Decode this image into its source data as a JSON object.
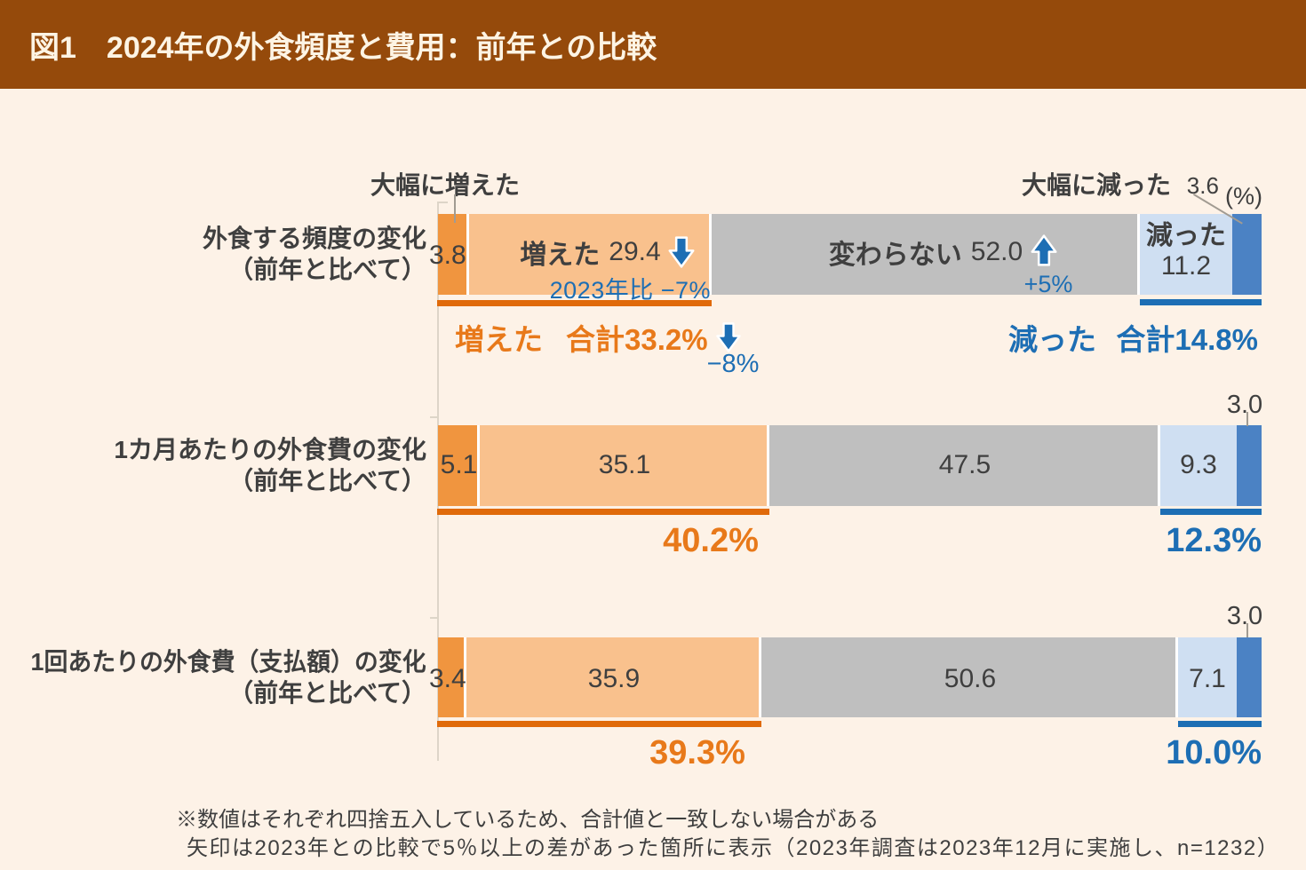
{
  "header": {
    "title": "図1　2024年の外食頻度と費用：前年との比較"
  },
  "chart_data": {
    "type": "bar",
    "orientation": "horizontal",
    "stacked": true,
    "unit": "(%)",
    "xlim": [
      0,
      100
    ],
    "series": [
      "大幅に増えた",
      "増えた",
      "変わらない",
      "減った",
      "大幅に減った"
    ],
    "colors": [
      "#f0953f",
      "#f9c18d",
      "#bfbfbf",
      "#cfdff2",
      "#4b82c4"
    ],
    "categories": [
      {
        "line1": "外食する頻度の変化",
        "line2": "（前年と比べて）"
      },
      {
        "line1": "1カ月あたりの外食費の変化",
        "line2": "（前年と比べて）"
      },
      {
        "line1": "1回あたりの外食費（支払額）の変化",
        "line2": "（前年と比べて）"
      }
    ],
    "rows": [
      {
        "values": [
          "3.8",
          "29.4",
          "52.0",
          "11.2",
          "3.6"
        ]
      },
      {
        "values": [
          "5.1",
          "35.1",
          "47.5",
          "9.3",
          "3.0"
        ]
      },
      {
        "values": [
          "3.4",
          "35.9",
          "50.6",
          "7.1",
          "3.0"
        ]
      }
    ]
  },
  "annotations": {
    "top_left": "大幅に増えた",
    "top_right_label": "大幅に減った",
    "top_right_value": "3.6",
    "unit": "(%)",
    "seg1_label": "増えた",
    "seg1_value": "29.4",
    "seg1_change": "2023年比 −7%",
    "seg2_label": "変わらない",
    "seg2_value": "52.0",
    "seg2_change": "+5%",
    "seg3_label": "減った",
    "seg3_value": "11.2"
  },
  "totals": {
    "row1_increase_label": "増えた",
    "row1_increase_value": "合計33.2%",
    "row1_increase_change": "−8%",
    "row1_decrease_label": "減った",
    "row1_decrease_value": "合計14.8%",
    "row2_increase": "40.2%",
    "row2_decrease": "12.3%",
    "row3_increase": "39.3%",
    "row3_decrease": "10.0%"
  },
  "notes": {
    "line1": "※数値はそれぞれ四捨五入しているため、合計値と一致しない場合がある",
    "line2": "矢印は2023年との比較で5％以上の差があった箇所に表示（2023年調査は2023年12月に実施し、n=1232）"
  }
}
